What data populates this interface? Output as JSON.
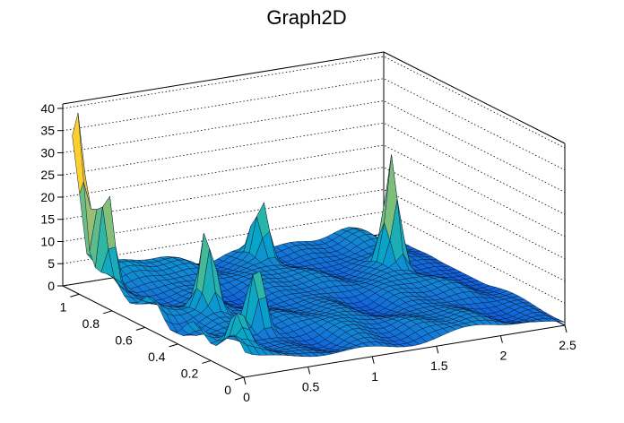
{
  "chart_data": {
    "type": "surface3d",
    "title": "Graph2D",
    "xlabel": "",
    "ylabel": "",
    "zlabel": "",
    "xlim": [
      0,
      2.5
    ],
    "ylim": [
      0,
      1.1
    ],
    "zlim": [
      0,
      41
    ],
    "x_ticks": [
      "0",
      "0.5",
      "1",
      "1.5",
      "2",
      "2.5"
    ],
    "y_ticks": [
      "0",
      "0.2",
      "0.4",
      "0.6",
      "0.8",
      "1"
    ],
    "z_ticks": [
      "0",
      "5",
      "10",
      "15",
      "20",
      "25",
      "30",
      "35",
      "40"
    ],
    "grid": true,
    "colormap": [
      "#352a87",
      "#0f5cdd",
      "#1481d6",
      "#06a4ca",
      "#2eb7a4",
      "#87bf77",
      "#d1bb59",
      "#fec832",
      "#f9fb0e"
    ],
    "surface_color_range": [
      0,
      41
    ],
    "peaks": [
      {
        "x": 0.02,
        "y": 1.02,
        "z": 37
      },
      {
        "x": 0.1,
        "y": 0.92,
        "z": 27
      },
      {
        "x": 0.55,
        "y": 0.35,
        "z": 18
      },
      {
        "x": 0.42,
        "y": 0.55,
        "z": 20
      },
      {
        "x": 2.05,
        "y": 0.7,
        "z": 27
      },
      {
        "x": 1.35,
        "y": 0.95,
        "z": 16
      },
      {
        "x": 0.15,
        "y": 0.15,
        "z": 10
      }
    ]
  }
}
